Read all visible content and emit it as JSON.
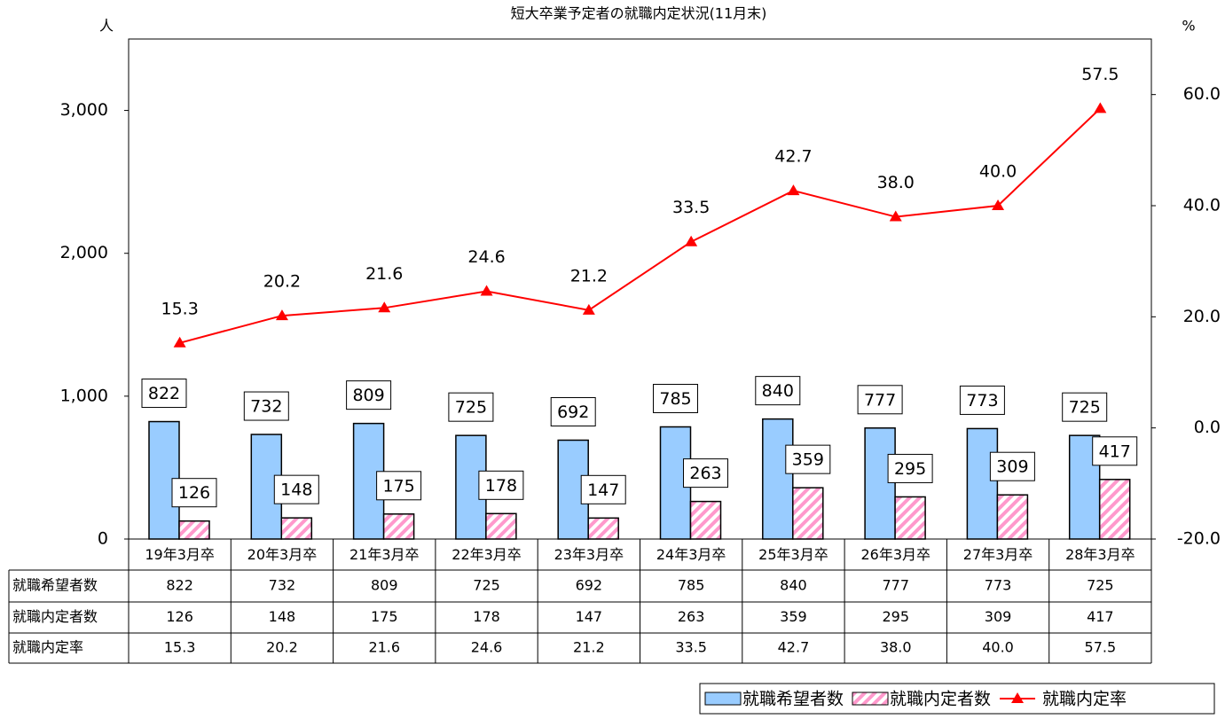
{
  "chart_data": {
    "type": "bar-line",
    "title": "短大卒業予定者の就職内定状況(11月末)",
    "y_label": "人",
    "y2_label": "%",
    "categories": [
      "19年3月卒",
      "20年3月卒",
      "21年3月卒",
      "22年3月卒",
      "23年3月卒",
      "24年3月卒",
      "25年3月卒",
      "26年3月卒",
      "27年3月卒",
      "28年3月卒"
    ],
    "series": [
      {
        "name": "就職希望者数",
        "color": "#99ccff",
        "values": [
          822,
          732,
          809,
          725,
          692,
          785,
          840,
          777,
          773,
          725
        ]
      },
      {
        "name": "就職内定者数",
        "color": "#ff99cc",
        "values": [
          126,
          148,
          175,
          178,
          147,
          263,
          359,
          295,
          309,
          417
        ]
      },
      {
        "name": "就職内定率",
        "color": "#ff0000",
        "axis": "y2",
        "values": [
          15.3,
          20.2,
          21.6,
          24.6,
          21.2,
          33.5,
          42.7,
          38.0,
          40.0,
          57.5
        ],
        "value_labels": [
          "15.3",
          "20.2",
          "21.6",
          "24.6",
          "21.2",
          "33.5",
          "42.7",
          "38.0",
          "40.0",
          "57.5"
        ]
      }
    ],
    "ylim": [
      0,
      3500
    ],
    "yticks": [
      0,
      {
        "value": 1000,
        "label": "1,000"
      },
      {
        "value": 2000,
        "label": "2,000"
      },
      {
        "value": 3000,
        "label": "3,000"
      }
    ],
    "y2lim": [
      -20,
      70
    ],
    "y2ticks": [
      {
        "value": -20,
        "label": "-20.0"
      },
      {
        "value": 0,
        "label": "0.0"
      },
      {
        "value": 20,
        "label": "20.0"
      },
      {
        "value": 40,
        "label": "40.0"
      },
      {
        "value": 60,
        "label": "60.0"
      }
    ],
    "legend": "bottom-right"
  }
}
